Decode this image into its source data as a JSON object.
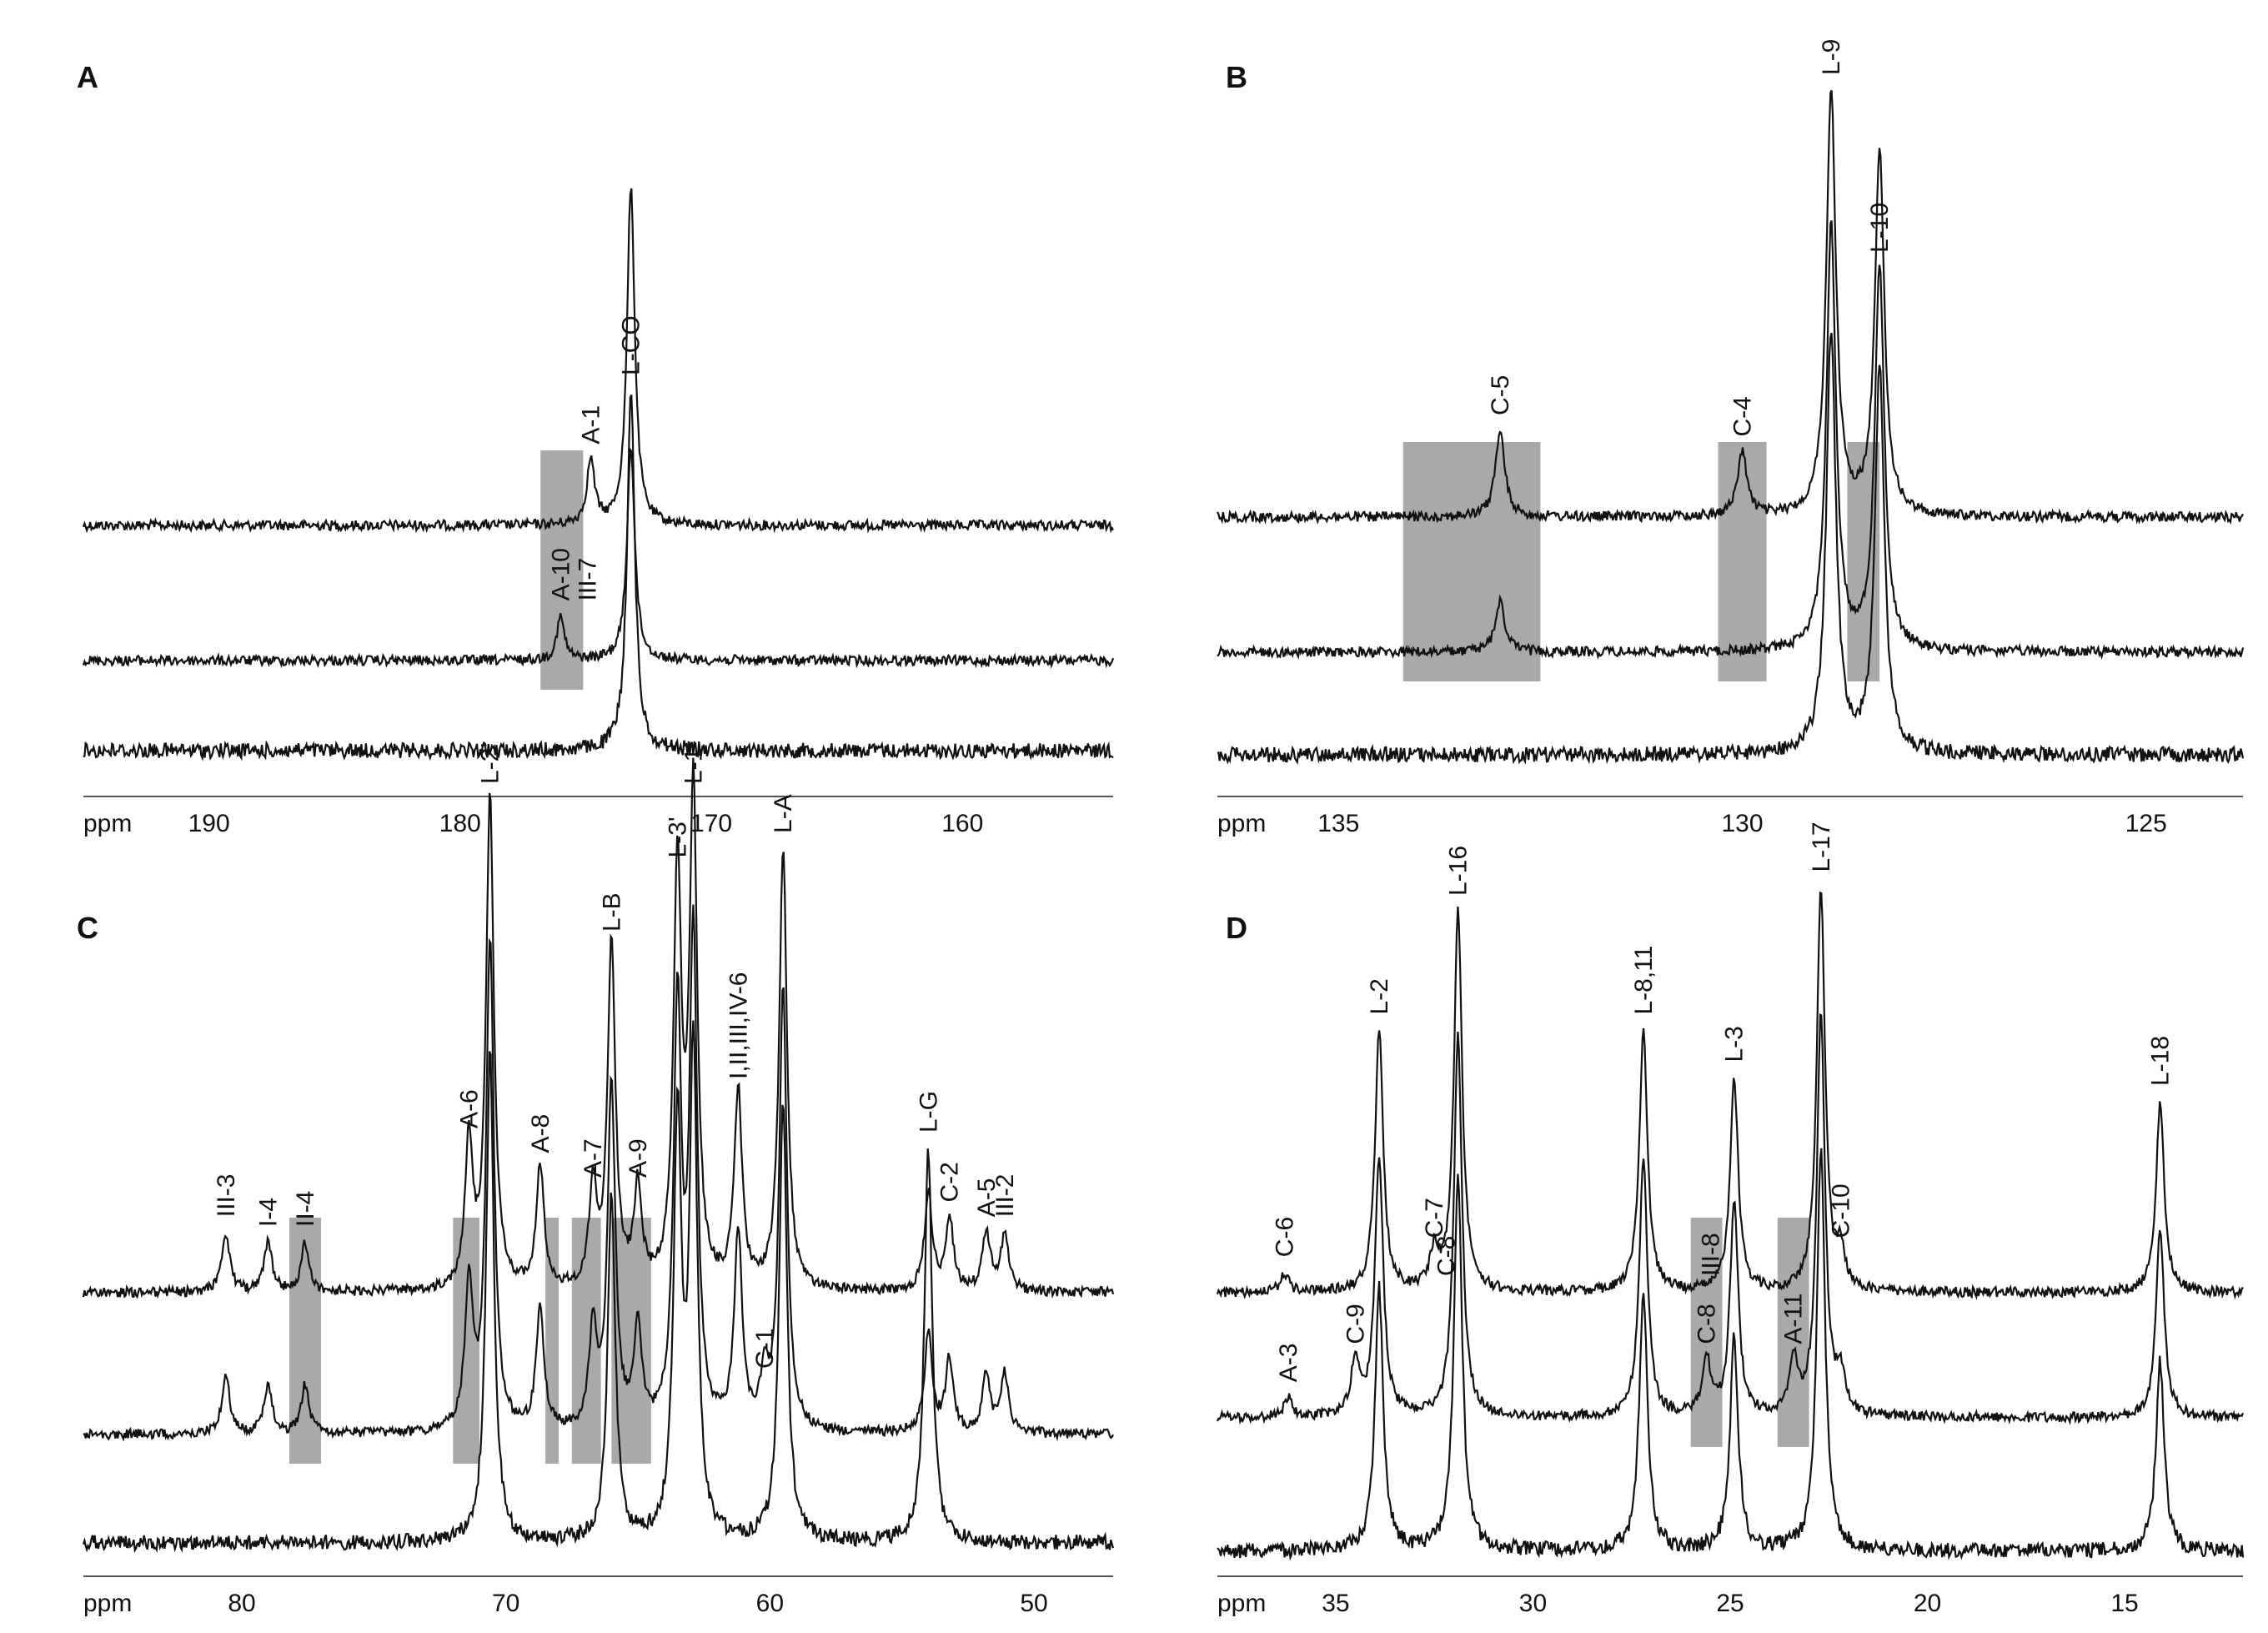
{
  "chart_data": [
    {
      "type": "line",
      "panel": "A",
      "xlabel": "ppm",
      "x_direction": "reversed",
      "xlim": [
        195,
        154
      ],
      "xticks": [
        190,
        180,
        170,
        160
      ],
      "series_count": 3,
      "peaks": [
        {
          "label": "L-CO",
          "ppm": 173.2,
          "heights": [
            0.95,
            0.6,
            1.0
          ]
        },
        {
          "label": "A-1",
          "ppm": 174.8,
          "heights": [
            0.18,
            0.0,
            0.0
          ]
        },
        {
          "label": "A-10\nIII-7",
          "ppm": 176.0,
          "heights": [
            0.0,
            0.12,
            0.0
          ]
        }
      ],
      "shaded_regions": [
        [
          176.8,
          175.1
        ]
      ]
    },
    {
      "type": "line",
      "panel": "B",
      "xlabel": "ppm",
      "x_direction": "reversed",
      "xlim": [
        136.5,
        123.8
      ],
      "xticks": [
        135,
        130,
        125
      ],
      "series_count": 3,
      "peaks": [
        {
          "label": "L-9",
          "ppm": 128.9,
          "heights": [
            1.0,
            1.0,
            1.0
          ]
        },
        {
          "label": "L-10",
          "ppm": 128.3,
          "heights": [
            0.85,
            0.9,
            0.9
          ]
        },
        {
          "label": "C-5",
          "ppm": 133.0,
          "heights": [
            0.2,
            0.12,
            0.0
          ]
        },
        {
          "label": "C-4",
          "ppm": 130.0,
          "heights": [
            0.15,
            0.0,
            0.0
          ]
        }
      ],
      "shaded_regions": [
        [
          134.2,
          132.5
        ],
        [
          130.3,
          129.7
        ],
        [
          128.7,
          128.3
        ]
      ]
    },
    {
      "type": "line",
      "panel": "C",
      "xlabel": "ppm",
      "x_direction": "reversed",
      "xlim": [
        86,
        47
      ],
      "xticks": [
        80,
        70,
        60,
        50
      ],
      "series_count": 3,
      "peaks": [
        {
          "label": "III-3",
          "ppm": 80.6,
          "heights": [
            0.12,
            0.12,
            0.0
          ]
        },
        {
          "label": "I-4",
          "ppm": 79.0,
          "heights": [
            0.1,
            0.1,
            0.0
          ]
        },
        {
          "label": "II-4",
          "ppm": 77.6,
          "heights": [
            0.1,
            0.1,
            0.0
          ]
        },
        {
          "label": "A-6",
          "ppm": 71.4,
          "heights": [
            0.3,
            0.3,
            0.0
          ]
        },
        {
          "label": "L-2'",
          "ppm": 70.6,
          "heights": [
            1.0,
            1.0,
            1.0
          ]
        },
        {
          "label": "A-8",
          "ppm": 68.7,
          "heights": [
            0.25,
            0.25,
            0.0
          ]
        },
        {
          "label": "A-7",
          "ppm": 66.7,
          "heights": [
            0.2,
            0.2,
            0.0
          ]
        },
        {
          "label": "L-B",
          "ppm": 66.0,
          "heights": [
            0.7,
            0.7,
            0.7
          ]
        },
        {
          "label": "A-9",
          "ppm": 65.0,
          "heights": [
            0.2,
            0.2,
            0.0
          ]
        },
        {
          "label": "L-3'",
          "ppm": 63.5,
          "heights": [
            0.85,
            0.85,
            0.85
          ]
        },
        {
          "label": "L-1'",
          "ppm": 62.9,
          "heights": [
            1.0,
            1.0,
            1.0
          ]
        },
        {
          "label": "I,II,III,IV-6",
          "ppm": 61.2,
          "heights": [
            0.4,
            0.4,
            0.0
          ]
        },
        {
          "label": "C-1",
          "ppm": 60.2,
          "heights": [
            0.0,
            0.1,
            0.0
          ]
        },
        {
          "label": "L-A",
          "ppm": 59.5,
          "heights": [
            0.9,
            0.9,
            0.9
          ]
        },
        {
          "label": "L-G",
          "ppm": 54.0,
          "heights": [
            0.2,
            0.2,
            0.8
          ]
        },
        {
          "label": "C-2",
          "ppm": 53.2,
          "heights": [
            0.15,
            0.15,
            0.0
          ]
        },
        {
          "label": "A-5",
          "ppm": 51.8,
          "heights": [
            0.12,
            0.12,
            0.0
          ]
        },
        {
          "label": "III-2",
          "ppm": 51.1,
          "heights": [
            0.12,
            0.12,
            0.0
          ]
        }
      ],
      "shaded_regions": [
        [
          78.2,
          77.0
        ],
        [
          72.0,
          71.0
        ],
        [
          68.5,
          68.0
        ],
        [
          67.5,
          66.4
        ],
        [
          66.0,
          64.5
        ]
      ]
    },
    {
      "type": "line",
      "panel": "D",
      "xlabel": "ppm",
      "x_direction": "reversed",
      "xlim": [
        38,
        12
      ],
      "xticks": [
        35,
        30,
        25,
        20,
        15
      ],
      "series_count": 3,
      "peaks": [
        {
          "label": "C-6",
          "ppm": 36.3,
          "heights": [
            0.04,
            0.0,
            0.0
          ]
        },
        {
          "label": "A-3",
          "ppm": 36.2,
          "heights": [
            0.0,
            0.04,
            0.0
          ]
        },
        {
          "label": "C-9",
          "ppm": 34.5,
          "heights": [
            0.0,
            0.12,
            0.0
          ]
        },
        {
          "label": "L-2",
          "ppm": 33.9,
          "heights": [
            0.55,
            0.55,
            0.55
          ]
        },
        {
          "label": "C-7",
          "ppm": 32.5,
          "heights": [
            0.08,
            0.0,
            0.0
          ]
        },
        {
          "label": "C-8",
          "ppm": 32.2,
          "heights": [
            0.0,
            0.0,
            0.0
          ]
        },
        {
          "label": "L-16",
          "ppm": 31.9,
          "heights": [
            0.8,
            0.8,
            0.8
          ]
        },
        {
          "label": "L-8,11",
          "ppm": 27.2,
          "heights": [
            0.55,
            0.55,
            0.55
          ]
        },
        {
          "label": "C-8",
          "ppm": 25.6,
          "heights": [
            0.0,
            0.12,
            0.0
          ]
        },
        {
          "label": "III-8",
          "ppm": 25.5,
          "heights": [
            0.0,
            0.0,
            0.0
          ]
        },
        {
          "label": "L-3",
          "ppm": 24.9,
          "heights": [
            0.45,
            0.45,
            0.45
          ]
        },
        {
          "label": "A-11",
          "ppm": 23.4,
          "heights": [
            0.0,
            0.12,
            0.0
          ]
        },
        {
          "label": "L-17",
          "ppm": 22.7,
          "heights": [
            0.85,
            0.85,
            0.85
          ]
        },
        {
          "label": "C-10",
          "ppm": 22.2,
          "heights": [
            0.08,
            0.08,
            0.0
          ]
        },
        {
          "label": "L-18",
          "ppm": 14.1,
          "heights": [
            0.4,
            0.4,
            0.4
          ]
        }
      ],
      "shaded_regions": [
        [
          26.0,
          25.2
        ],
        [
          23.8,
          23.0
        ]
      ]
    }
  ]
}
